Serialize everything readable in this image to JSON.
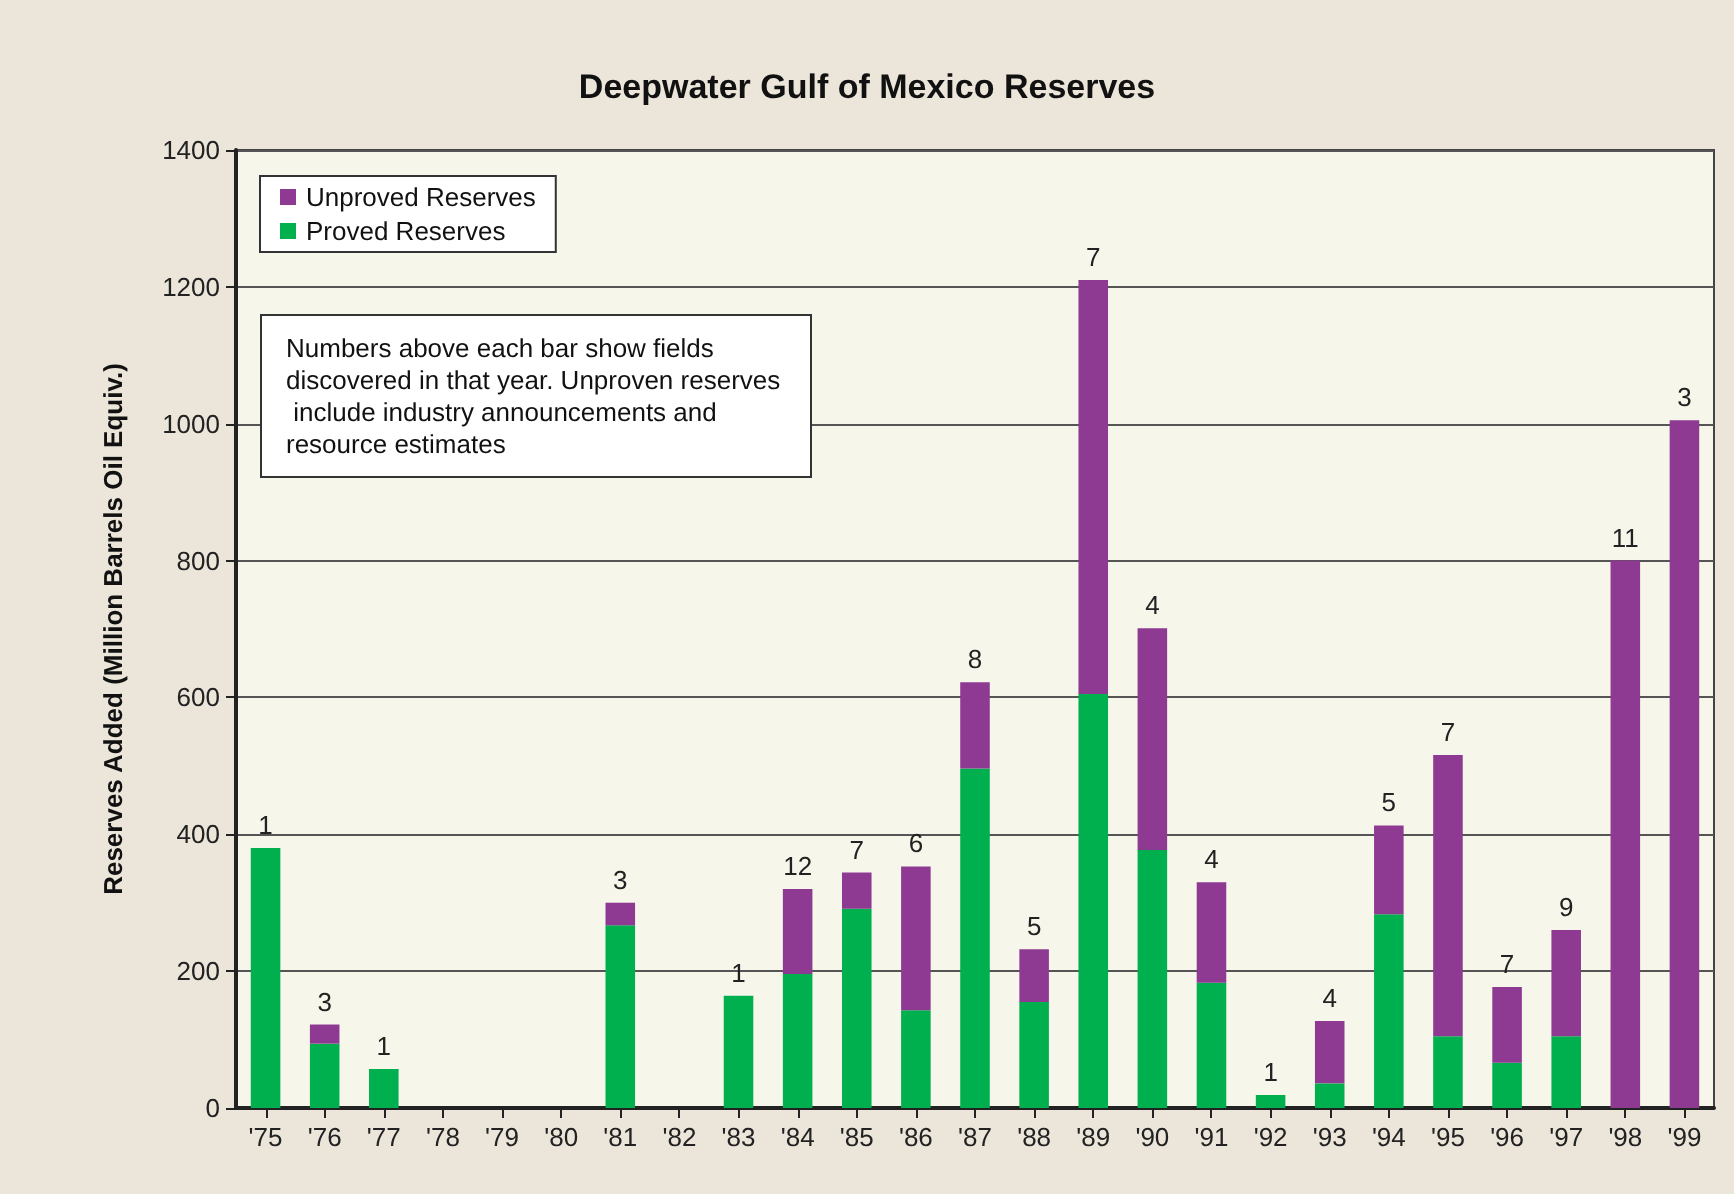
{
  "chart_data": {
    "type": "bar",
    "title": "Deepwater Gulf of Mexico Reserves",
    "ylabel": "Reserves Added (Million Barrels Oil Equiv.)",
    "categories": [
      "'75",
      "'76",
      "'77",
      "'78",
      "'79",
      "'80",
      "'81",
      "'82",
      "'83",
      "'84",
      "'85",
      "'86",
      "'87",
      "'88",
      "'89",
      "'90",
      "'91",
      "'92",
      "'93",
      "'94",
      "'95",
      "'96",
      "'97",
      "'98",
      "'99"
    ],
    "series": [
      {
        "name": "Proved Reserves",
        "color": "#00b04f",
        "values": [
          380,
          94,
          57,
          0,
          0,
          0,
          267,
          0,
          164,
          196,
          291,
          143,
          496,
          155,
          605,
          377,
          183,
          19,
          36,
          283,
          105,
          66,
          105,
          0,
          0
        ]
      },
      {
        "name": "Unproved Reserves",
        "color": "#8e3a92",
        "values": [
          0,
          28,
          0,
          0,
          0,
          0,
          33,
          0,
          0,
          124,
          53,
          210,
          126,
          77,
          605,
          324,
          147,
          0,
          91,
          130,
          411,
          111,
          155,
          800,
          1005
        ]
      }
    ],
    "stacked": true,
    "ylim": [
      0,
      1400
    ],
    "yticks": [
      0,
      200,
      400,
      600,
      800,
      1000,
      1200,
      1400
    ],
    "grid": "y",
    "legend": "top left",
    "annotations": [
      "Numbers above each bar show fields discovered in that year. Unproven reserves include industry announcements and resource estimates",
      {
        "text": "1",
        "x": "'75",
        "y": 380
      },
      {
        "text": "3",
        "x": "'76",
        "y": 122
      },
      {
        "text": "1",
        "x": "'77",
        "y": 57
      },
      {
        "text": "3",
        "x": "'81",
        "y": 300
      },
      {
        "text": "1",
        "x": "'83",
        "y": 164
      },
      {
        "text": "12",
        "x": "'84",
        "y": 320
      },
      {
        "text": "7",
        "x": "'85",
        "y": 344
      },
      {
        "text": "6",
        "x": "'86",
        "y": 353
      },
      {
        "text": "8",
        "x": "'87",
        "y": 622
      },
      {
        "text": "5",
        "x": "'88",
        "y": 232
      },
      {
        "text": "7",
        "x": "'89",
        "y": 1210
      },
      {
        "text": "4",
        "x": "'90",
        "y": 701
      },
      {
        "text": "4",
        "x": "'91",
        "y": 330
      },
      {
        "text": "1",
        "x": "'92",
        "y": 19
      },
      {
        "text": "4",
        "x": "'93",
        "y": 127
      },
      {
        "text": "5",
        "x": "'94",
        "y": 413
      },
      {
        "text": "7",
        "x": "'95",
        "y": 516
      },
      {
        "text": "7",
        "x": "'96",
        "y": 177
      },
      {
        "text": "9",
        "x": "'97",
        "y": 260
      },
      {
        "text": "11",
        "x": "'98",
        "y": 800
      },
      {
        "text": "3",
        "x": "'99",
        "y": 1005
      }
    ]
  }
}
